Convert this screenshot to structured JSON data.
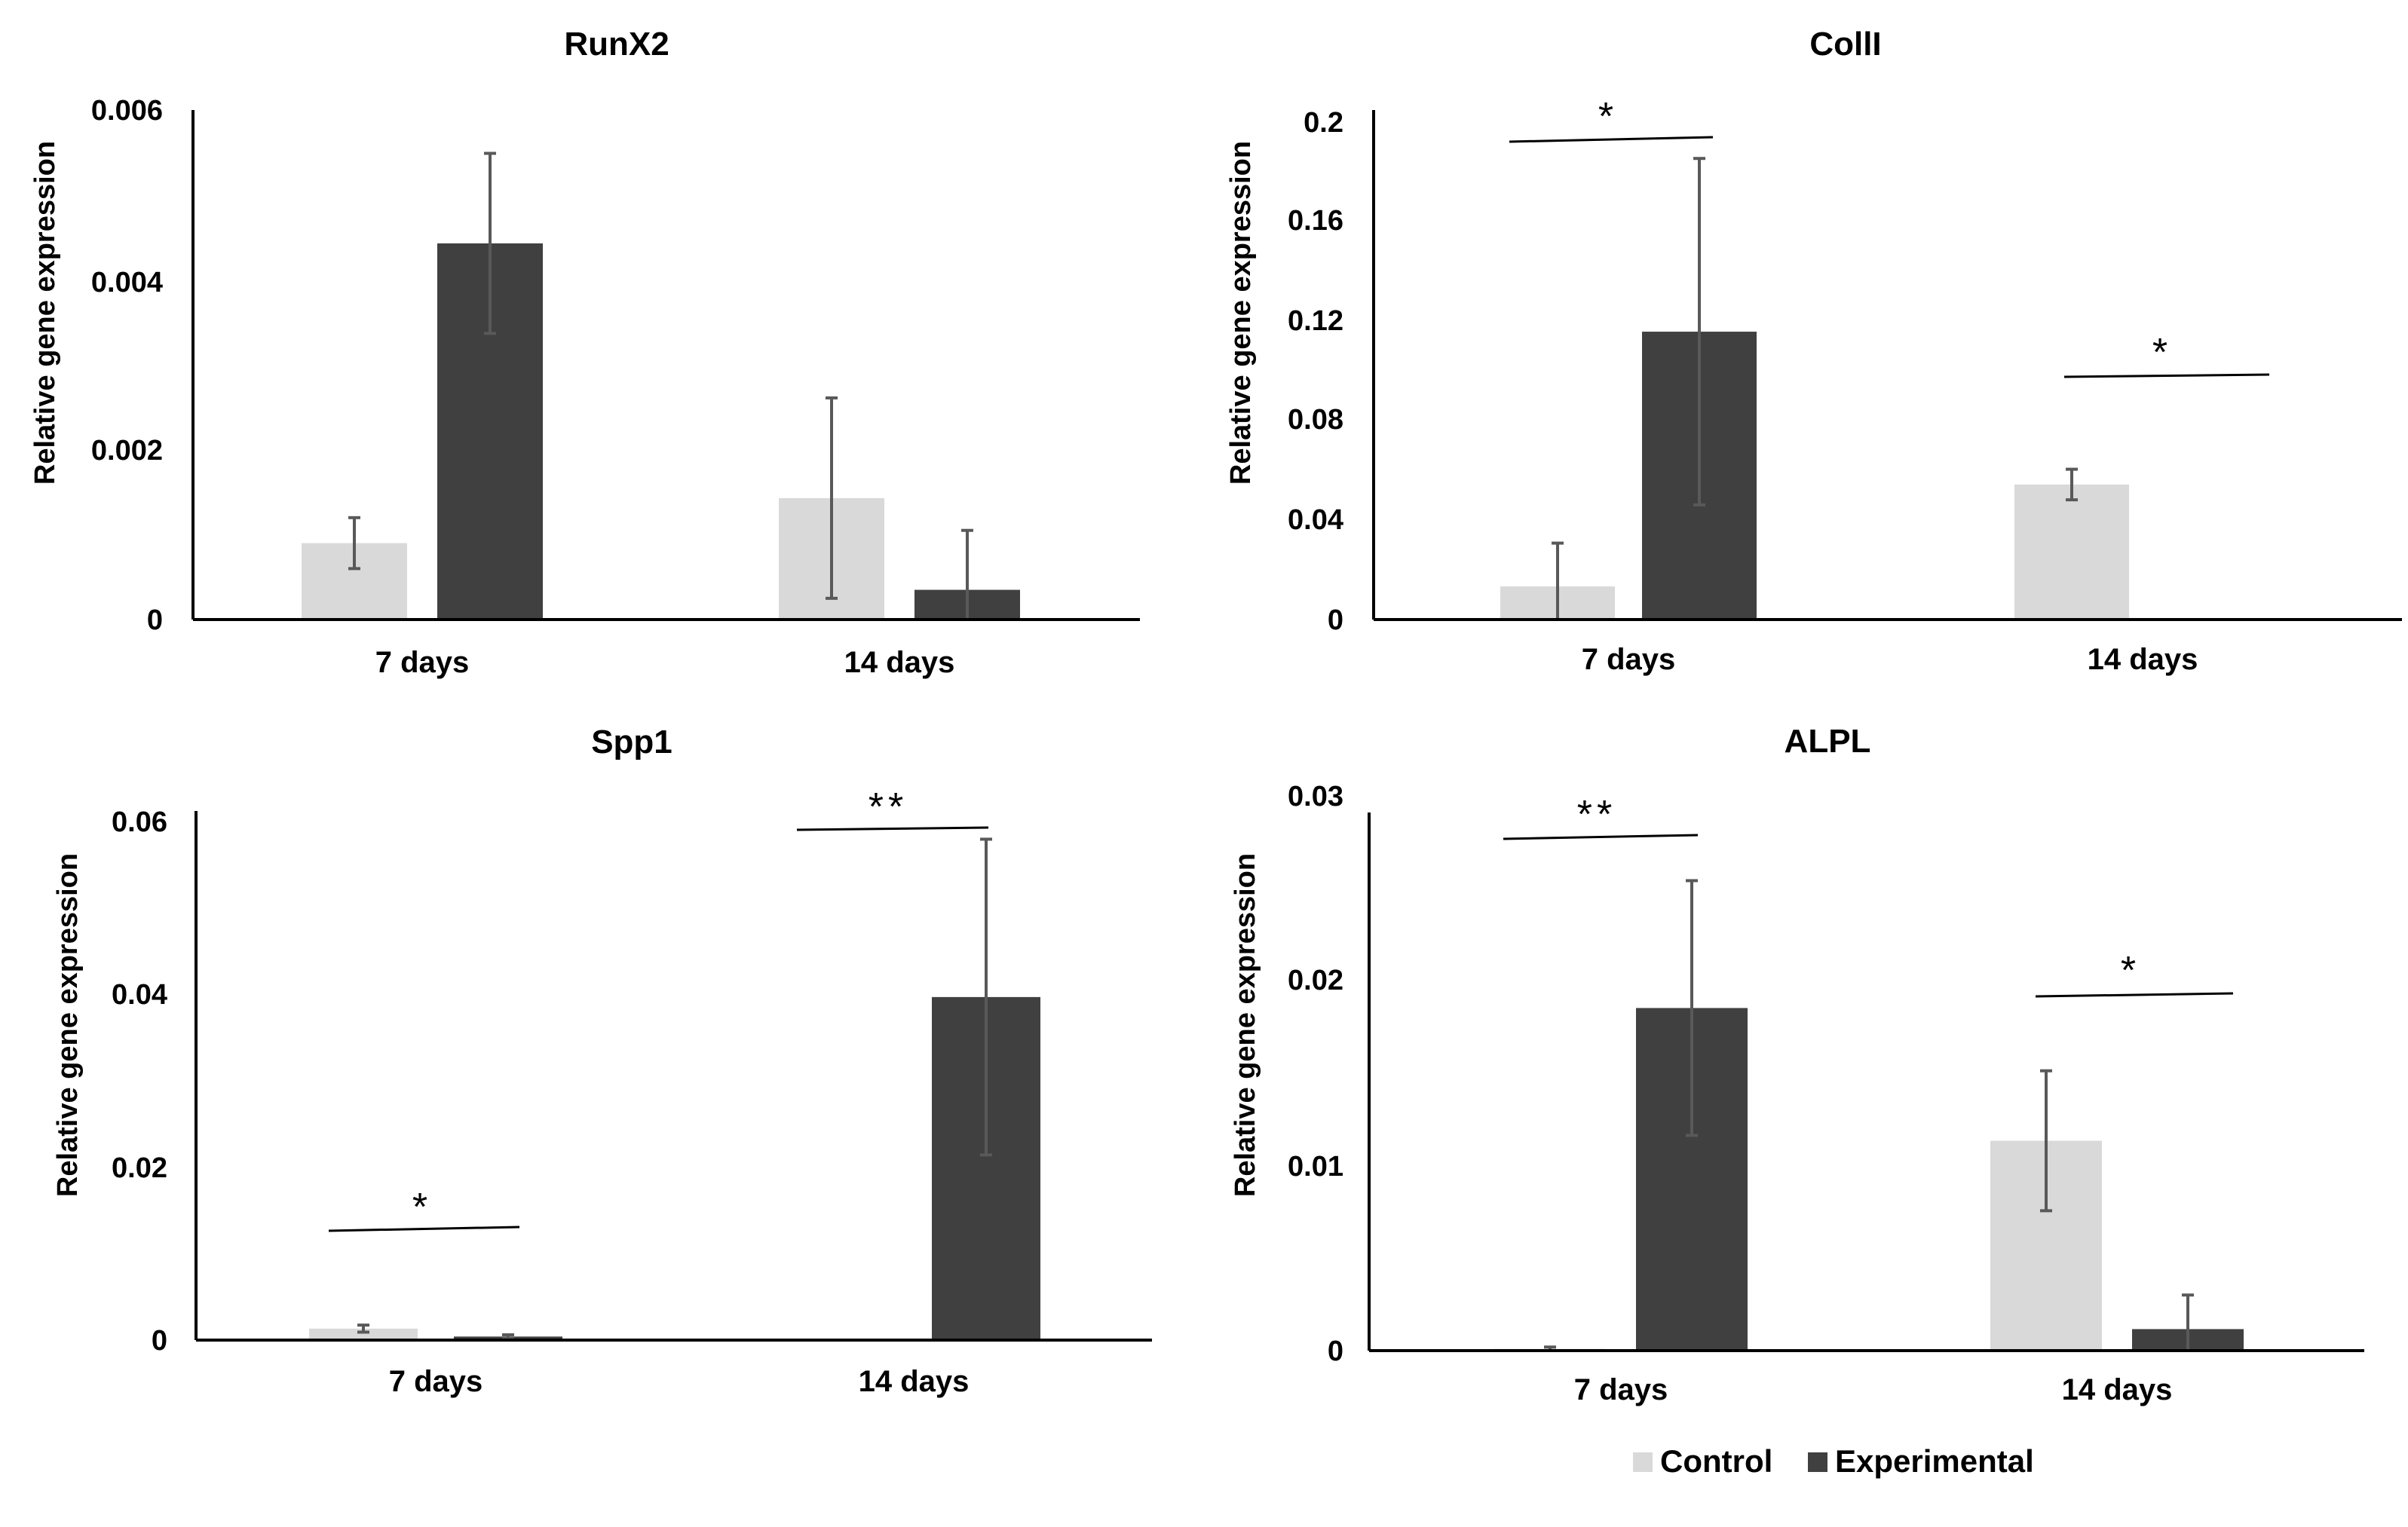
{
  "chart_data": [
    {
      "type": "bar",
      "title": "RunX2",
      "xlabel": "",
      "ylabel": "Relative gene expression",
      "categories": [
        "7 days",
        "14 days"
      ],
      "ylim": [
        0,
        0.006
      ],
      "yticks": [
        "0",
        "0.002",
        "0.004",
        "0.006"
      ],
      "series": [
        {
          "name": "Control",
          "values": [
            0.0009,
            0.00143
          ],
          "errors": [
            0.0003,
            0.00118
          ]
        },
        {
          "name": "Experimental",
          "values": [
            0.00443,
            0.00035
          ],
          "errors": [
            0.00106,
            0.0007
          ]
        }
      ],
      "significance": []
    },
    {
      "type": "bar",
      "title": "CollI",
      "xlabel": "",
      "ylabel": "Relative gene expression",
      "categories": [
        "7 days",
        "14 days"
      ],
      "ylim": [
        0,
        0.2
      ],
      "yticks": [
        "0",
        "0.04",
        "0.08",
        "0.12",
        "0.16",
        "0.2"
      ],
      "series": [
        {
          "name": "Control",
          "values": [
            0.013,
            0.053
          ],
          "errors": [
            0.017,
            0.006
          ]
        },
        {
          "name": "Experimental",
          "values": [
            0.113,
            0
          ],
          "errors": [
            0.068,
            0
          ]
        }
      ],
      "significance": [
        {
          "category": "7 days",
          "label": "*"
        },
        {
          "category": "14 days",
          "label": "*"
        }
      ]
    },
    {
      "type": "bar",
      "title": "Spp1",
      "xlabel": "",
      "ylabel": "Relative gene expression",
      "categories": [
        "7 days",
        "14 days"
      ],
      "ylim": [
        0,
        0.06
      ],
      "yticks": [
        "0",
        "0.02",
        "0.04",
        "0.06"
      ],
      "series": [
        {
          "name": "Control",
          "values": [
            0.0013,
            0.0001
          ],
          "errors": [
            0.0004,
            0
          ]
        },
        {
          "name": "Experimental",
          "values": [
            0.0004,
            0.0389
          ],
          "errors": [
            0.0002,
            0.0179
          ]
        }
      ],
      "significance": [
        {
          "category": "7 days",
          "label": "*"
        },
        {
          "category": "14 days",
          "label": "**"
        }
      ]
    },
    {
      "type": "bar",
      "title": "ALPL",
      "xlabel": "",
      "ylabel": "Relative gene expression",
      "categories": [
        "7 days",
        "14 days"
      ],
      "ylim": [
        0,
        0.03
      ],
      "yticks": [
        "0",
        "0.01",
        "0.02",
        "0.03"
      ],
      "series": [
        {
          "name": "Control",
          "values": [
            0.0001,
            0.0117
          ],
          "errors": [
            0.0001,
            0.0039
          ]
        },
        {
          "name": "Experimental",
          "values": [
            0.0191,
            0.0012
          ],
          "errors": [
            0.0071,
            0.0019
          ]
        }
      ],
      "significance": [
        {
          "category": "7 days",
          "label": "**"
        },
        {
          "category": "14 days",
          "label": "*"
        }
      ]
    }
  ],
  "legend": [
    {
      "label": "Control",
      "color": "#d9d9d9"
    },
    {
      "label": "Experimental",
      "color": "#404040"
    }
  ],
  "colors": {
    "control": "#d9d9d9",
    "experimental": "#404040",
    "error_bar": "#595959",
    "axis": "#000000"
  }
}
